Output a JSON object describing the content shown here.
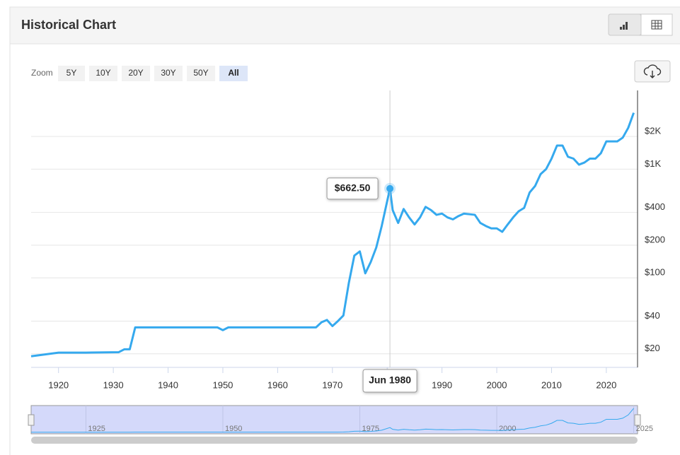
{
  "ui": {
    "title": "Historical Chart",
    "zoom_label": "Zoom",
    "zoom_buttons": [
      "5Y",
      "10Y",
      "20Y",
      "30Y",
      "50Y",
      "All"
    ]
  },
  "chart_data": {
    "type": "line",
    "log_y": true,
    "grid": true,
    "xlim": [
      1915,
      2025.7
    ],
    "ylim": [
      15,
      5300
    ],
    "xticks": [
      1920,
      1930,
      1940,
      1950,
      1960,
      1970,
      1980,
      1990,
      2000,
      2010,
      2020
    ],
    "yticks": [
      {
        "value": 20,
        "label": "$20"
      },
      {
        "value": 40,
        "label": "$40"
      },
      {
        "value": 100,
        "label": "$100"
      },
      {
        "value": 200,
        "label": "$200"
      },
      {
        "value": 400,
        "label": "$400"
      },
      {
        "value": 1000,
        "label": "$1K"
      },
      {
        "value": 2000,
        "label": "$2K"
      }
    ],
    "series": [
      {
        "color": "#35a9ee",
        "x": [
          1915,
          1920,
          1925,
          1931,
          1932,
          1933,
          1934,
          1940,
          1949,
          1950,
          1951,
          1960,
          1967,
          1968,
          1969,
          1970,
          1971,
          1972,
          1973,
          1974,
          1975,
          1976,
          1977,
          1978,
          1979,
          1980.5,
          1981,
          1982,
          1983,
          1984,
          1985,
          1986,
          1987,
          1988,
          1989,
          1990,
          1991,
          1992,
          1993,
          1994,
          1995,
          1996,
          1997,
          1998,
          1999,
          2000,
          2001,
          2002,
          2003,
          2004,
          2005,
          2006,
          2007,
          2008,
          2009,
          2010,
          2011,
          2012,
          2013,
          2014,
          2015,
          2016,
          2017,
          2018,
          2019,
          2020,
          2021,
          2022,
          2023,
          2024,
          2025
        ],
        "values": [
          19,
          20.5,
          20.5,
          20.7,
          22,
          22,
          35,
          35,
          35,
          33,
          35,
          35,
          35,
          39,
          41,
          36,
          40,
          45,
          90,
          160,
          175,
          110,
          140,
          190,
          300,
          662.5,
          420,
          320,
          430,
          360,
          310,
          360,
          450,
          420,
          380,
          390,
          360,
          345,
          370,
          390,
          385,
          380,
          320,
          300,
          285,
          285,
          265,
          310,
          360,
          410,
          440,
          610,
          700,
          900,
          1000,
          1250,
          1650,
          1650,
          1300,
          1250,
          1100,
          1150,
          1250,
          1250,
          1400,
          1800,
          1800,
          1800,
          1950,
          2400,
          3300
        ]
      }
    ],
    "tooltip": {
      "date": "Jun 1980",
      "value": 662.5,
      "value_label": "$662.50"
    },
    "navigator": {
      "xticks": [
        1925,
        1950,
        1975,
        2000,
        2025
      ]
    }
  }
}
